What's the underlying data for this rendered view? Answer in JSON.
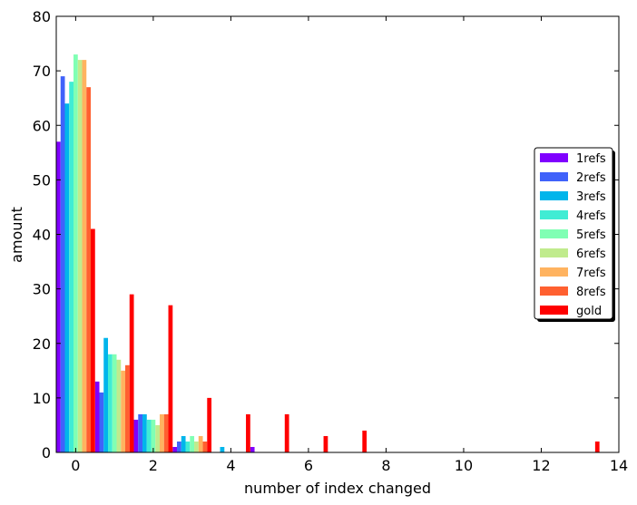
{
  "chart_data": {
    "type": "bar",
    "title": "",
    "xlabel": "number of index changed",
    "ylabel": "amount",
    "xlim": [
      -0.5,
      14
    ],
    "ylim": [
      0,
      80
    ],
    "xticks": [
      0,
      2,
      4,
      6,
      8,
      10,
      12,
      14
    ],
    "yticks": [
      0,
      10,
      20,
      30,
      40,
      50,
      60,
      70,
      80
    ],
    "grid": false,
    "legend_position": "right",
    "x": [
      0,
      1,
      2,
      3,
      4,
      5,
      6,
      7,
      8,
      9,
      10,
      11,
      12,
      13
    ],
    "series": [
      {
        "name": "1refs",
        "color": "#8000ff",
        "values": [
          57,
          13,
          6,
          1,
          0,
          1,
          0,
          0,
          0,
          0,
          0,
          0,
          0,
          0
        ]
      },
      {
        "name": "2refs",
        "color": "#4062fa",
        "values": [
          69,
          11,
          7,
          2,
          0,
          0,
          0,
          0,
          0,
          0,
          0,
          0,
          0,
          0
        ]
      },
      {
        "name": "3refs",
        "color": "#00b5eb",
        "values": [
          64,
          21,
          7,
          3,
          1,
          0,
          0,
          0,
          0,
          0,
          0,
          0,
          0,
          0
        ]
      },
      {
        "name": "4refs",
        "color": "#40ecd4",
        "values": [
          68,
          18,
          6,
          2,
          0,
          0,
          0,
          0,
          0,
          0,
          0,
          0,
          0,
          0
        ]
      },
      {
        "name": "5refs",
        "color": "#80ffb4",
        "values": [
          73,
          18,
          6,
          3,
          0,
          0,
          0,
          0,
          0,
          0,
          0,
          0,
          0,
          0
        ]
      },
      {
        "name": "6refs",
        "color": "#c0eb8d",
        "values": [
          72,
          17,
          5,
          2,
          0,
          0,
          0,
          0,
          0,
          0,
          0,
          0,
          0,
          0
        ]
      },
      {
        "name": "7refs",
        "color": "#ffb360",
        "values": [
          72,
          15,
          7,
          3,
          0,
          0,
          0,
          0,
          0,
          0,
          0,
          0,
          0,
          0
        ]
      },
      {
        "name": "8refs",
        "color": "#ff6030",
        "values": [
          67,
          16,
          7,
          2,
          0,
          0,
          0,
          0,
          0,
          0,
          0,
          0,
          0,
          0
        ]
      },
      {
        "name": "gold",
        "color": "#ff0000",
        "values": [
          41,
          29,
          27,
          10,
          7,
          7,
          3,
          4,
          0,
          0,
          0,
          0,
          0,
          2
        ]
      }
    ]
  }
}
